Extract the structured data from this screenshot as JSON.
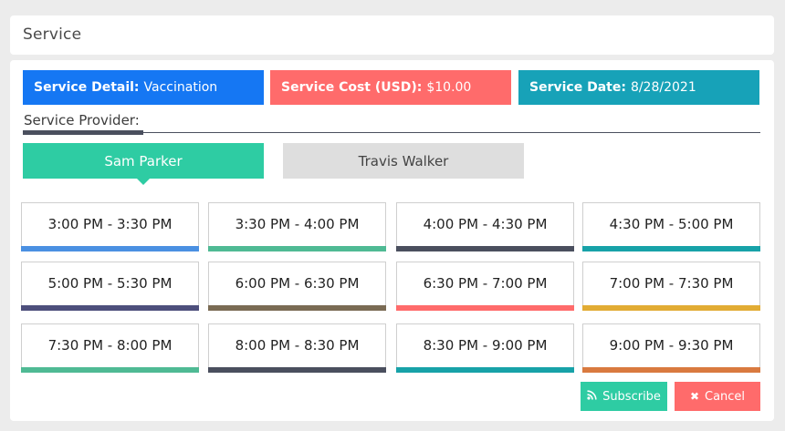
{
  "header": {
    "title": "Service"
  },
  "info": {
    "detail": {
      "label": "Service Detail:",
      "value": "Vaccination",
      "color": "#1577f3"
    },
    "cost": {
      "label": "Service Cost (USD):",
      "value": "$10.00",
      "color": "#ff6b6b"
    },
    "date": {
      "label": "Service Date:",
      "value": "8/28/2021",
      "color": "#17a2b8"
    }
  },
  "provider": {
    "label": "Service Provider:",
    "tabs": [
      {
        "label": "Sam Parker",
        "active": true
      },
      {
        "label": "Travis Walker",
        "active": false
      }
    ]
  },
  "slots": [
    {
      "label": "3:00 PM - 3:30 PM",
      "color": "#4a90e2"
    },
    {
      "label": "3:30 PM - 4:00 PM",
      "color": "#4fba94"
    },
    {
      "label": "4:00 PM - 4:30 PM",
      "color": "#4a4f5e"
    },
    {
      "label": "4:30 PM - 5:00 PM",
      "color": "#17a2a8"
    },
    {
      "label": "5:00 PM - 5:30 PM",
      "color": "#4d4f7c"
    },
    {
      "label": "6:00 PM - 6:30 PM",
      "color": "#7a6b54"
    },
    {
      "label": "6:30 PM - 7:00 PM",
      "color": "#ff6b6b"
    },
    {
      "label": "7:00 PM - 7:30 PM",
      "color": "#e2ac34"
    },
    {
      "label": "7:30 PM - 8:00 PM",
      "color": "#4fba94"
    },
    {
      "label": "8:00 PM - 8:30 PM",
      "color": "#4a4f5e"
    },
    {
      "label": "8:30 PM - 9:00 PM",
      "color": "#17a2a8"
    },
    {
      "label": "9:00 PM - 9:30 PM",
      "color": "#d97a3f"
    }
  ],
  "actions": {
    "subscribe": {
      "label": "Subscribe",
      "icon": "rss-icon",
      "color": "#2ecca3"
    },
    "cancel": {
      "label": "Cancel",
      "icon": "close-icon",
      "color": "#ff6b6b"
    }
  }
}
